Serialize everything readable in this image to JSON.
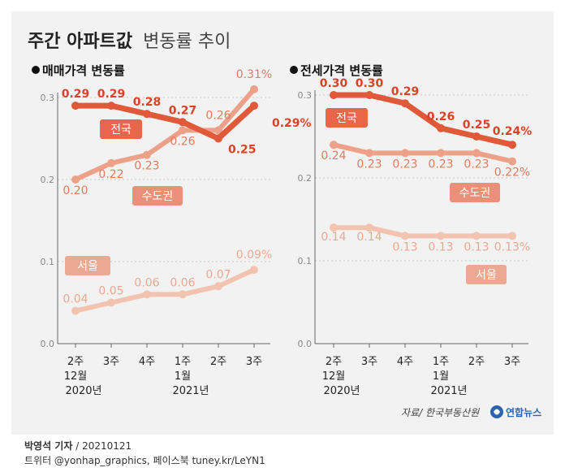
{
  "title_bold": "주간 아파트값",
  "title_light": "변동률 추이",
  "source": "자료/ 한국부동산원",
  "logo_text": "연합뉴스",
  "byline": {
    "name": "박영석 기자",
    "sep": "/",
    "date": "20210121"
  },
  "social": "트위터 @yonhap_graphics, 페이스북 tuney.kr/LeYN1",
  "colors": {
    "nation": "#e05a3a",
    "capital": "#eda188",
    "seoul": "#f2c3ae",
    "label_box_nation": "#e8674a",
    "label_box_capital": "#e9907a",
    "label_box_seoul": "#eda891"
  },
  "chart_data": [
    {
      "type": "line",
      "title": "매매가격 변동률",
      "categories": [
        "2주",
        "3주",
        "4주",
        "1주",
        "2주",
        "3주"
      ],
      "x_sublabels": [
        "12월",
        "",
        "",
        "1월",
        "",
        ""
      ],
      "x_years": [
        "2020년",
        "",
        "",
        "2021년",
        "",
        ""
      ],
      "ylim": [
        0.0,
        0.3
      ],
      "yticks": [
        "0.0",
        "0.1",
        "0.2",
        "0.3"
      ],
      "series": [
        {
          "name": "전국",
          "values": [
            0.29,
            0.29,
            0.28,
            0.27,
            0.25,
            0.29
          ],
          "labels": [
            "0.29",
            "0.29",
            "0.28",
            "0.27",
            "0.25",
            "0.29%"
          ]
        },
        {
          "name": "수도권",
          "values": [
            0.2,
            0.22,
            0.23,
            0.26,
            0.26,
            0.31
          ],
          "labels": [
            "0.20",
            "0.22",
            "0.23",
            "0.26",
            "0.26",
            "0.31%"
          ]
        },
        {
          "name": "서울",
          "values": [
            0.04,
            0.05,
            0.06,
            0.06,
            0.07,
            0.09
          ],
          "labels": [
            "0.04",
            "0.05",
            "0.06",
            "0.06",
            "0.07",
            "0.09%"
          ]
        }
      ]
    },
    {
      "type": "line",
      "title": "전세가격 변동률",
      "categories": [
        "2주",
        "3주",
        "4주",
        "1주",
        "2주",
        "3주"
      ],
      "x_sublabels": [
        "12월",
        "",
        "",
        "1월",
        "",
        ""
      ],
      "x_years": [
        "2020년",
        "",
        "",
        "2021년",
        "",
        ""
      ],
      "ylim": [
        0.0,
        0.3
      ],
      "yticks": [
        "0.0",
        "0.1",
        "0.2",
        "0.3"
      ],
      "series": [
        {
          "name": "전국",
          "values": [
            0.3,
            0.3,
            0.29,
            0.26,
            0.25,
            0.24
          ],
          "labels": [
            "0.30",
            "0.30",
            "0.29",
            "0.26",
            "0.25",
            "0.24%"
          ]
        },
        {
          "name": "수도권",
          "values": [
            0.24,
            0.23,
            0.23,
            0.23,
            0.23,
            0.22
          ],
          "labels": [
            "0.24",
            "0.23",
            "0.23",
            "0.23",
            "0.23",
            "0.22%"
          ]
        },
        {
          "name": "서울",
          "values": [
            0.14,
            0.14,
            0.13,
            0.13,
            0.13,
            0.13
          ],
          "labels": [
            "0.14",
            "0.14",
            "0.13",
            "0.13",
            "0.13",
            "0.13%"
          ]
        }
      ]
    }
  ]
}
